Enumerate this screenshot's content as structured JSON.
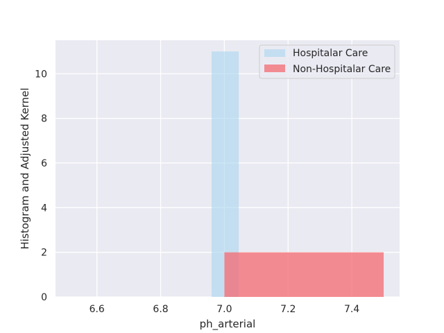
{
  "chart_data": {
    "type": "bar",
    "title": "",
    "xlabel": "ph_arterial",
    "ylabel": "Histogram and Adjusted Kernel",
    "xlim": [
      6.47,
      7.55
    ],
    "ylim": [
      0,
      11.5
    ],
    "xticks": [
      6.6,
      6.8,
      7.0,
      7.2,
      7.4
    ],
    "xtick_labels": [
      "6.6",
      "6.8",
      "7.0",
      "7.2",
      "7.4"
    ],
    "yticks": [
      0,
      2,
      4,
      6,
      8,
      10
    ],
    "ytick_labels": [
      "0",
      "2",
      "4",
      "6",
      "8",
      "10"
    ],
    "grid": true,
    "legend_position": "top-right",
    "series": [
      {
        "name": "Hospitalar Care",
        "color": "#a8d5ef",
        "opacity": 0.6,
        "bins": [
          {
            "x_start": 6.96,
            "x_end": 7.045,
            "count": 11
          }
        ]
      },
      {
        "name": "Non-Hospitalar Care",
        "color": "#f46a72",
        "opacity": 0.75,
        "bins": [
          {
            "x_start": 7.0,
            "x_end": 7.5,
            "count": 2
          }
        ]
      }
    ]
  }
}
